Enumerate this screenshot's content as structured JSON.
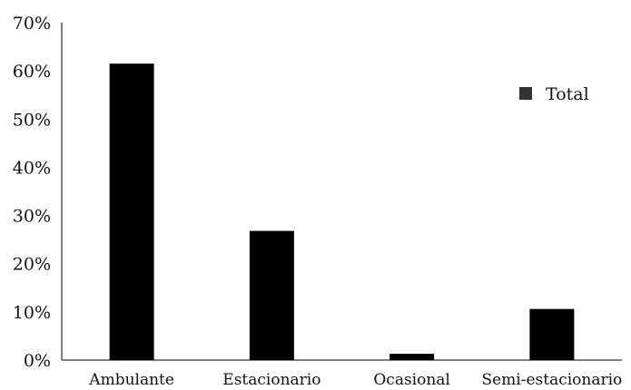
{
  "chart_data": {
    "type": "bar",
    "title": "",
    "xlabel": "",
    "ylabel": "",
    "categories": [
      "Ambulante",
      "Estacionario",
      "Ocasional",
      "Semi-estacionario"
    ],
    "series": [
      {
        "name": "Total",
        "values": [
          0.615,
          0.268,
          0.013,
          0.106
        ]
      }
    ],
    "ylim": [
      0,
      0.7
    ],
    "yticks": [
      0,
      0.1,
      0.2,
      0.3,
      0.4,
      0.5,
      0.6,
      0.7
    ],
    "ytick_labels": [
      "0%",
      "10%",
      "20%",
      "30%",
      "40%",
      "50%",
      "60%",
      "70%"
    ],
    "legend": {
      "position": "right",
      "entries": [
        "Total"
      ]
    },
    "grid": false,
    "colors": {
      "bar": "#000000",
      "legend_swatch": "#333333",
      "axis": "#000000"
    }
  }
}
